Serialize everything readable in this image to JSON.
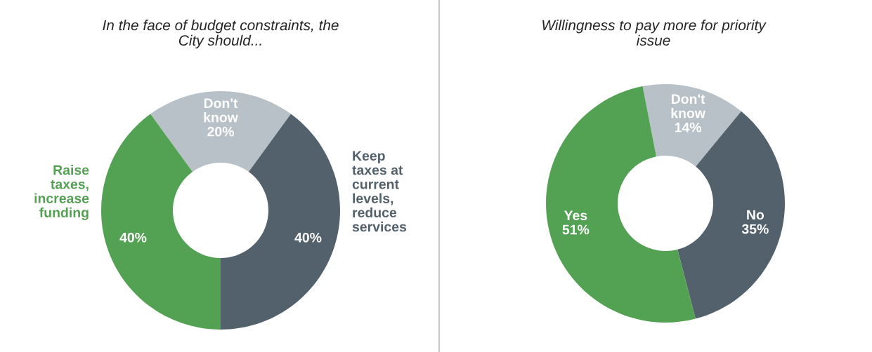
{
  "chart_data": [
    {
      "type": "donut",
      "title": "In the face of budget constraints, the\nCity should...",
      "categories": [
        "Don't\nknow",
        "Keep\ntaxes at\ncurrent\nlevels,\nreduce\nservices",
        "Raise\ntaxes,\nincrease\nfunding"
      ],
      "values": [
        20,
        40,
        40
      ],
      "colors": [
        "#b8c1c8",
        "#52616b",
        "#53a153"
      ],
      "value_labels": [
        "20%",
        "40%",
        "40%"
      ],
      "legend": false
    },
    {
      "type": "donut",
      "title": "Willingness to pay more for priority\nissue",
      "categories": [
        "Don't\nknow",
        "No",
        "Yes"
      ],
      "values": [
        14,
        35,
        51
      ],
      "colors": [
        "#b8c1c8",
        "#52616b",
        "#53a153"
      ],
      "value_labels": [
        "14%",
        "35%",
        "51%"
      ],
      "legend": false
    }
  ]
}
